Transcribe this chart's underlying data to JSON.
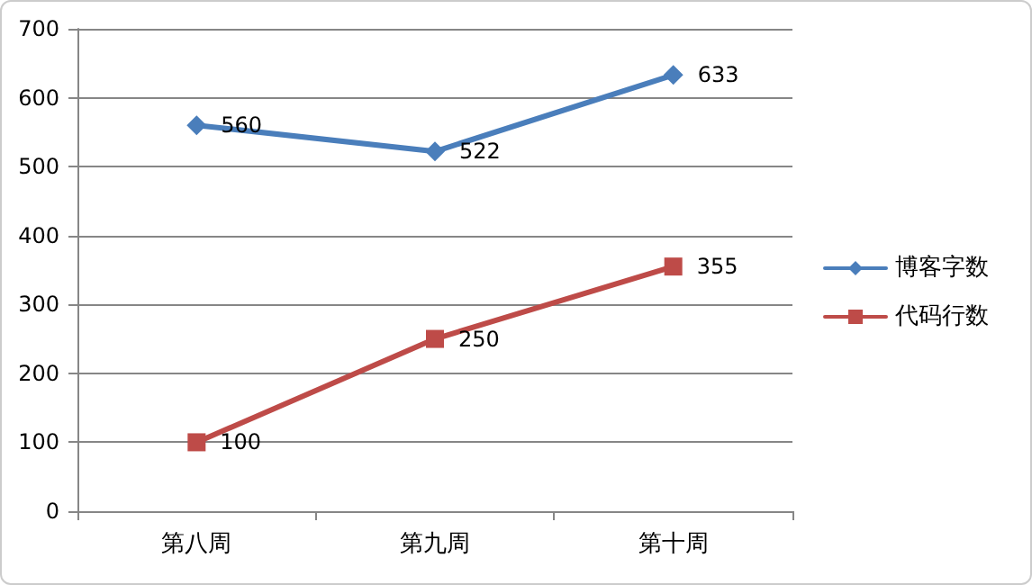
{
  "chart_data": {
    "type": "line",
    "categories": [
      "第八周",
      "第九周",
      "第十周"
    ],
    "series": [
      {
        "name": "博客字数",
        "color": "#4a7ebb",
        "values": [
          560,
          522,
          633
        ],
        "marker": "diamond"
      },
      {
        "name": "代码行数",
        "color": "#be4b48",
        "values": [
          100,
          250,
          355
        ],
        "marker": "square"
      }
    ],
    "ylim": [
      0,
      700
    ],
    "yticks": [
      0,
      100,
      200,
      300,
      400,
      500,
      600,
      700
    ],
    "grid": "y",
    "legend": "right",
    "data_labels": true
  }
}
